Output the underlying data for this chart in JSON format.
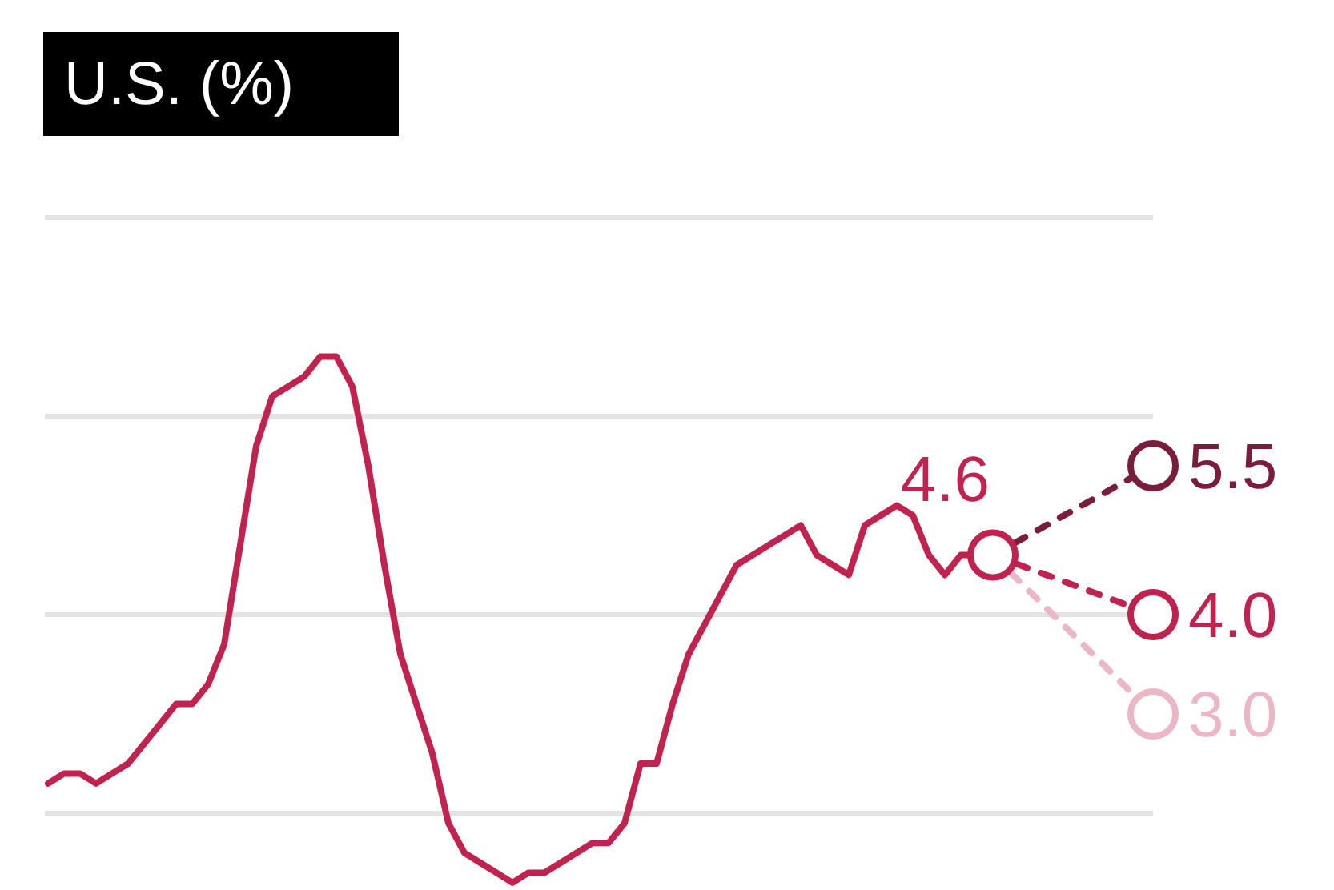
{
  "chart_data": {
    "type": "line",
    "title": "U.S. (%)",
    "categories": [
      null,
      null,
      null,
      null,
      null,
      null,
      null,
      null,
      null,
      null,
      null,
      null,
      null,
      null,
      null,
      null,
      null,
      null,
      null,
      null,
      null,
      null,
      null,
      null,
      null,
      null,
      null,
      null,
      null,
      null,
      null,
      null,
      null,
      null,
      null,
      null,
      null,
      null,
      null,
      null,
      null,
      null,
      null,
      null,
      null,
      null,
      null,
      null,
      null,
      null,
      null,
      null,
      null,
      null,
      null,
      null,
      null,
      null,
      null,
      null,
      null,
      null,
      null,
      null,
      null,
      null,
      null,
      null,
      null,
      null
    ],
    "yticks": [
      {
        "value": 2,
        "label": null
      },
      {
        "value": 4,
        "label": null
      },
      {
        "value": 6,
        "label": null
      },
      {
        "value": 8,
        "label": null
      }
    ],
    "grid": "y",
    "series": [
      {
        "color": "#c0234f",
        "line_style": "solid",
        "values": [
          2.3,
          2.4,
          2.4,
          2.3,
          2.4,
          2.5,
          2.7,
          2.9,
          3.1,
          3.1,
          3.3,
          3.7,
          4.7,
          5.7,
          6.2,
          6.3,
          6.4,
          6.6,
          6.6,
          6.3,
          5.5,
          4.5,
          3.6,
          3.1,
          2.6,
          1.9,
          1.6,
          1.5,
          1.4,
          1.3,
          1.4,
          1.4,
          1.5,
          1.6,
          1.7,
          1.7,
          1.9,
          2.5,
          2.5,
          3.1,
          3.6,
          3.9,
          4.2,
          4.5,
          4.6,
          4.7,
          4.8,
          4.9,
          4.6,
          4.5,
          4.4,
          4.9,
          5.0,
          5.1,
          5.0,
          4.6,
          4.4,
          4.6,
          4.6,
          4.6,
          null,
          null,
          null,
          null,
          null,
          null,
          null,
          null,
          null,
          null
        ],
        "value_labels": [
          null,
          null,
          null,
          null,
          null,
          null,
          null,
          null,
          null,
          null,
          null,
          null,
          null,
          null,
          null,
          null,
          null,
          null,
          null,
          null,
          null,
          null,
          null,
          null,
          null,
          null,
          null,
          null,
          null,
          null,
          null,
          null,
          null,
          null,
          null,
          null,
          null,
          null,
          null,
          null,
          null,
          null,
          null,
          null,
          null,
          null,
          null,
          null,
          null,
          null,
          null,
          null,
          null,
          null,
          null,
          null,
          null,
          null,
          null,
          "4.6",
          null,
          null,
          null,
          null,
          null,
          null,
          null,
          null,
          null,
          null
        ]
      },
      {
        "color": "#7a1c3c",
        "line_style": "dashed",
        "values": [
          null,
          null,
          null,
          null,
          null,
          null,
          null,
          null,
          null,
          null,
          null,
          null,
          null,
          null,
          null,
          null,
          null,
          null,
          null,
          null,
          null,
          null,
          null,
          null,
          null,
          null,
          null,
          null,
          null,
          null,
          null,
          null,
          null,
          null,
          null,
          null,
          null,
          null,
          null,
          null,
          null,
          null,
          null,
          null,
          null,
          null,
          null,
          null,
          null,
          null,
          null,
          null,
          null,
          null,
          null,
          null,
          null,
          null,
          null,
          4.6,
          null,
          null,
          null,
          null,
          null,
          null,
          null,
          null,
          null,
          5.5
        ],
        "value_labels": [
          null,
          null,
          null,
          null,
          null,
          null,
          null,
          null,
          null,
          null,
          null,
          null,
          null,
          null,
          null,
          null,
          null,
          null,
          null,
          null,
          null,
          null,
          null,
          null,
          null,
          null,
          null,
          null,
          null,
          null,
          null,
          null,
          null,
          null,
          null,
          null,
          null,
          null,
          null,
          null,
          null,
          null,
          null,
          null,
          null,
          null,
          null,
          null,
          null,
          null,
          null,
          null,
          null,
          null,
          null,
          null,
          null,
          null,
          null,
          null,
          null,
          null,
          null,
          null,
          null,
          null,
          null,
          null,
          null,
          "5.5"
        ]
      },
      {
        "color": "#c0234f",
        "line_style": "dashed",
        "values": [
          null,
          null,
          null,
          null,
          null,
          null,
          null,
          null,
          null,
          null,
          null,
          null,
          null,
          null,
          null,
          null,
          null,
          null,
          null,
          null,
          null,
          null,
          null,
          null,
          null,
          null,
          null,
          null,
          null,
          null,
          null,
          null,
          null,
          null,
          null,
          null,
          null,
          null,
          null,
          null,
          null,
          null,
          null,
          null,
          null,
          null,
          null,
          null,
          null,
          null,
          null,
          null,
          null,
          null,
          null,
          null,
          null,
          null,
          null,
          4.6,
          null,
          null,
          null,
          null,
          null,
          null,
          null,
          null,
          null,
          4.0
        ],
        "value_labels": [
          null,
          null,
          null,
          null,
          null,
          null,
          null,
          null,
          null,
          null,
          null,
          null,
          null,
          null,
          null,
          null,
          null,
          null,
          null,
          null,
          null,
          null,
          null,
          null,
          null,
          null,
          null,
          null,
          null,
          null,
          null,
          null,
          null,
          null,
          null,
          null,
          null,
          null,
          null,
          null,
          null,
          null,
          null,
          null,
          null,
          null,
          null,
          null,
          null,
          null,
          null,
          null,
          null,
          null,
          null,
          null,
          null,
          null,
          null,
          null,
          null,
          null,
          null,
          null,
          null,
          null,
          null,
          null,
          null,
          "4.0"
        ]
      },
      {
        "color": "#ebb6c6",
        "line_style": "dashed",
        "values": [
          null,
          null,
          null,
          null,
          null,
          null,
          null,
          null,
          null,
          null,
          null,
          null,
          null,
          null,
          null,
          null,
          null,
          null,
          null,
          null,
          null,
          null,
          null,
          null,
          null,
          null,
          null,
          null,
          null,
          null,
          null,
          null,
          null,
          null,
          null,
          null,
          null,
          null,
          null,
          null,
          null,
          null,
          null,
          null,
          null,
          null,
          null,
          null,
          null,
          null,
          null,
          null,
          null,
          null,
          null,
          null,
          null,
          null,
          null,
          4.6,
          null,
          null,
          null,
          null,
          null,
          null,
          null,
          null,
          null,
          3.0
        ],
        "value_labels": [
          null,
          null,
          null,
          null,
          null,
          null,
          null,
          null,
          null,
          null,
          null,
          null,
          null,
          null,
          null,
          null,
          null,
          null,
          null,
          null,
          null,
          null,
          null,
          null,
          null,
          null,
          null,
          null,
          null,
          null,
          null,
          null,
          null,
          null,
          null,
          null,
          null,
          null,
          null,
          null,
          null,
          null,
          null,
          null,
          null,
          null,
          null,
          null,
          null,
          null,
          null,
          null,
          null,
          null,
          null,
          null,
          null,
          null,
          null,
          null,
          null,
          null,
          null,
          null,
          null,
          null,
          null,
          null,
          null,
          "3.0"
        ]
      }
    ]
  }
}
